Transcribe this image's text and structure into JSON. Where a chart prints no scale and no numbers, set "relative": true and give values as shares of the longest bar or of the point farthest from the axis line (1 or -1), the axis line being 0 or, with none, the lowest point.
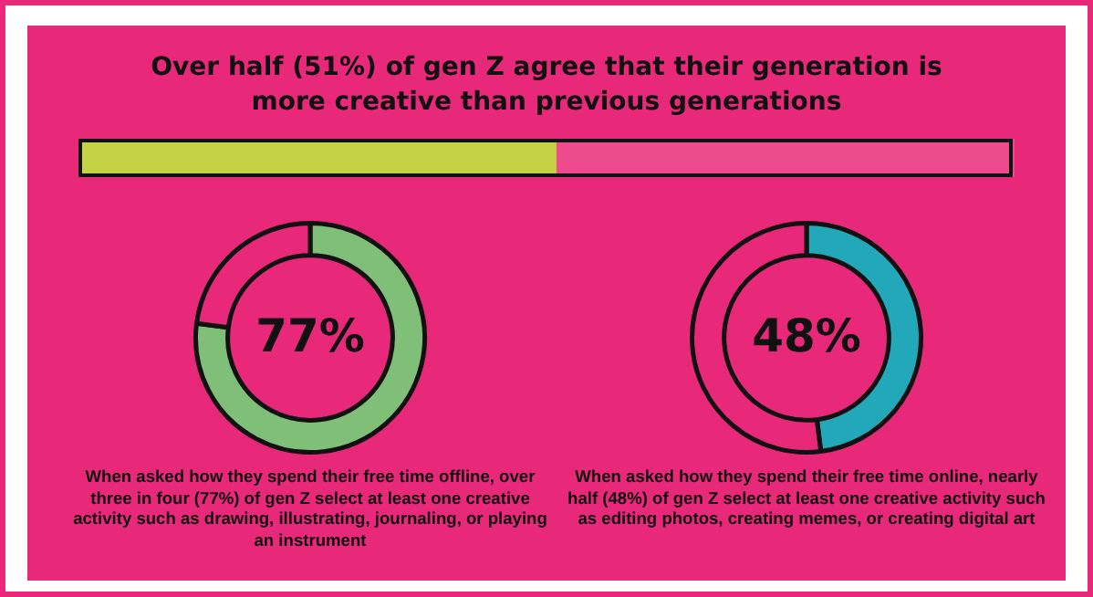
{
  "chart_data": [
    {
      "type": "bar",
      "title": "Over half (51%) of gen Z agree that their generation is more creative than previous generations",
      "orientation": "horizontal",
      "stacked": true,
      "relative": true,
      "categories": [
        null
      ],
      "legend": false,
      "series": [
        {
          "color": "#c5d246",
          "values": [
            0.51
          ]
        },
        {
          "color": "#ee4a8e",
          "values": [
            0.49
          ]
        }
      ]
    },
    {
      "type": "donut",
      "categories": [
        null,
        null
      ],
      "values": [
        77,
        23
      ],
      "colors": [
        "#7fbf78",
        "#e8297a"
      ],
      "value_labels": [
        "77%",
        null
      ],
      "legend": false,
      "annotations": [
        "When asked how they spend their free time offline, over three in four (77%) of gen Z select at least one creative activity such as drawing, illustrating, journaling, or playing an instrument"
      ]
    },
    {
      "type": "donut",
      "categories": [
        null,
        null
      ],
      "values": [
        48,
        52
      ],
      "colors": [
        "#22a8b8",
        "#e8297a"
      ],
      "value_labels": [
        "48%",
        null
      ],
      "legend": false,
      "annotations": [
        "When asked how they spend their free time online, nearly half (48%) of gen Z select at least one creative activity such as editing photos, creating memes, or creating digital art"
      ]
    }
  ]
}
